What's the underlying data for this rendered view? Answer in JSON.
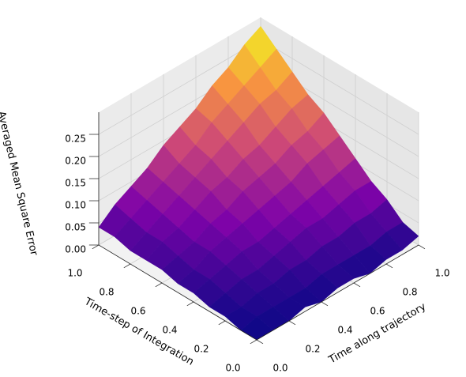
{
  "chart_data": {
    "type": "surface",
    "xlabel": "Time along trajectory",
    "ylabel": "Time-step of Integration",
    "zlabel": "Averaged Mean Square Error",
    "colormap": "plasma",
    "grid": true,
    "x": [
      0,
      0.1,
      0.2,
      0.3,
      0.4,
      0.5,
      0.6,
      0.7,
      0.8,
      0.9,
      1
    ],
    "y": [
      0,
      0.1,
      0.2,
      0.3,
      0.4,
      0.5,
      0.6,
      0.7,
      0.8,
      0.9,
      1
    ],
    "z": [
      [
        0.0,
        0.0,
        0.0,
        0.01,
        0.0,
        0.01,
        0.01,
        0.0,
        0.01,
        0.01,
        0.02
      ],
      [
        0.0,
        0.01,
        0.01,
        0.01,
        0.01,
        0.02,
        0.02,
        0.02,
        0.02,
        0.03,
        0.03
      ],
      [
        0.01,
        0.01,
        0.02,
        0.02,
        0.03,
        0.03,
        0.04,
        0.04,
        0.05,
        0.05,
        0.06
      ],
      [
        0.01,
        0.02,
        0.03,
        0.03,
        0.04,
        0.05,
        0.06,
        0.06,
        0.07,
        0.08,
        0.08
      ],
      [
        0.02,
        0.03,
        0.04,
        0.05,
        0.05,
        0.06,
        0.07,
        0.08,
        0.09,
        0.1,
        0.11
      ],
      [
        0.02,
        0.03,
        0.05,
        0.06,
        0.07,
        0.08,
        0.09,
        0.1,
        0.12,
        0.13,
        0.14
      ],
      [
        0.03,
        0.04,
        0.05,
        0.07,
        0.08,
        0.1,
        0.11,
        0.12,
        0.14,
        0.15,
        0.17
      ],
      [
        0.03,
        0.05,
        0.06,
        0.08,
        0.1,
        0.11,
        0.13,
        0.14,
        0.16,
        0.18,
        0.19
      ],
      [
        0.03,
        0.05,
        0.07,
        0.09,
        0.11,
        0.13,
        0.15,
        0.17,
        0.19,
        0.2,
        0.22
      ],
      [
        0.04,
        0.06,
        0.08,
        0.1,
        0.12,
        0.14,
        0.17,
        0.19,
        0.21,
        0.23,
        0.25
      ],
      [
        0.04,
        0.07,
        0.09,
        0.11,
        0.14,
        0.16,
        0.18,
        0.21,
        0.23,
        0.26,
        0.28
      ]
    ],
    "xlim": [
      0,
      1
    ],
    "ylim": [
      0,
      1
    ],
    "zlim": [
      0,
      0.3
    ],
    "xticks": [
      {
        "value": 0,
        "label": "0.0"
      },
      0.2,
      0.4,
      0.6,
      0.8,
      {
        "value": 1,
        "label": "1.0"
      }
    ],
    "yticks": [
      {
        "value": 0,
        "label": "0.0"
      },
      0.2,
      0.4,
      0.6,
      0.8,
      {
        "value": 1,
        "label": "1.0"
      }
    ],
    "zticks": [
      {
        "value": 0,
        "label": "0.00"
      },
      0.05,
      {
        "value": 0.1,
        "label": "0.10"
      },
      0.15,
      {
        "value": 0.2,
        "label": "0.20"
      },
      0.25
    ]
  }
}
